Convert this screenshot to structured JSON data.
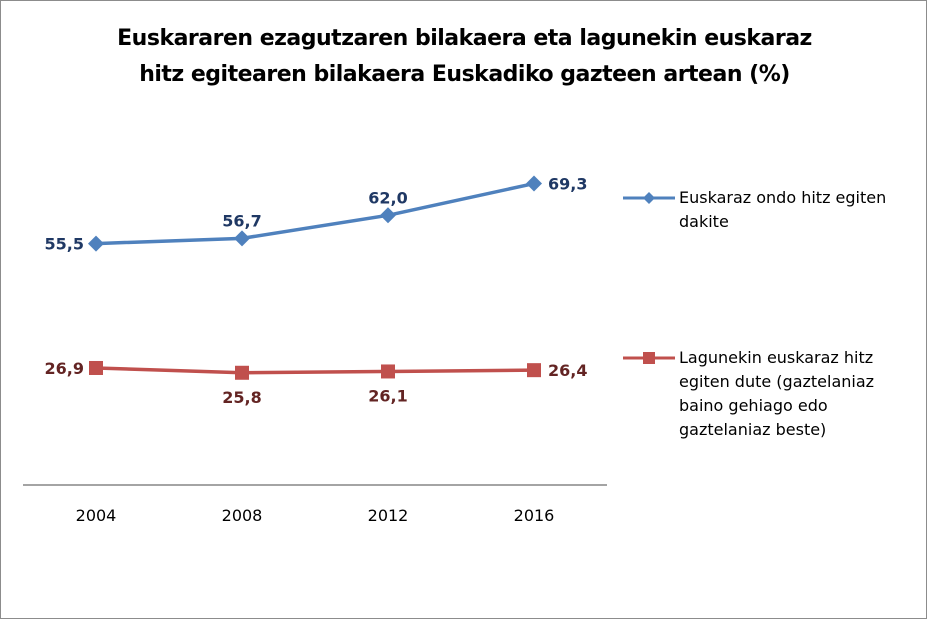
{
  "chart_data": {
    "type": "line",
    "title": "Euskararen ezagutzaren bilakaera eta lagunekin euskaraz hitz egitearen bilakaera Euskadiko gazteen artean (%)",
    "title_lines": [
      "Euskararen ezagutzaren bilakaera eta lagunekin euskaraz",
      "hitz egitearen bilakaera Euskadiko gazteen artean (%)"
    ],
    "xlabel": "",
    "ylabel": "",
    "categories": [
      "2004",
      "2008",
      "2012",
      "2016"
    ],
    "ylim": [
      0,
      80
    ],
    "grid": false,
    "legend_position": "right",
    "series": [
      {
        "name": "Euskaraz ondo hitz egiten dakite",
        "legend_lines": [
          "Euskaraz ondo hitz egiten",
          "dakite"
        ],
        "values": [
          55.5,
          56.7,
          62.0,
          69.3
        ],
        "labels": [
          "55,5",
          "56,7",
          "62,0",
          "69,3"
        ],
        "color": "#4f81bd",
        "label_color": "#1f3864",
        "marker": "diamond"
      },
      {
        "name": "Lagunekin euskaraz hitz egiten dute (gaztelaniaz baino gehiago edo gaztelaniaz beste)",
        "legend_lines": [
          "Lagunekin euskaraz hitz",
          "egiten dute (gaztelaniaz",
          "baino gehiago edo",
          "gaztelaniaz beste)"
        ],
        "values": [
          26.9,
          25.8,
          26.1,
          26.4
        ],
        "labels": [
          "26,9",
          "25,8",
          "26,1",
          "26,4"
        ],
        "color": "#c0504d",
        "label_color": "#632423",
        "marker": "square"
      }
    ]
  }
}
